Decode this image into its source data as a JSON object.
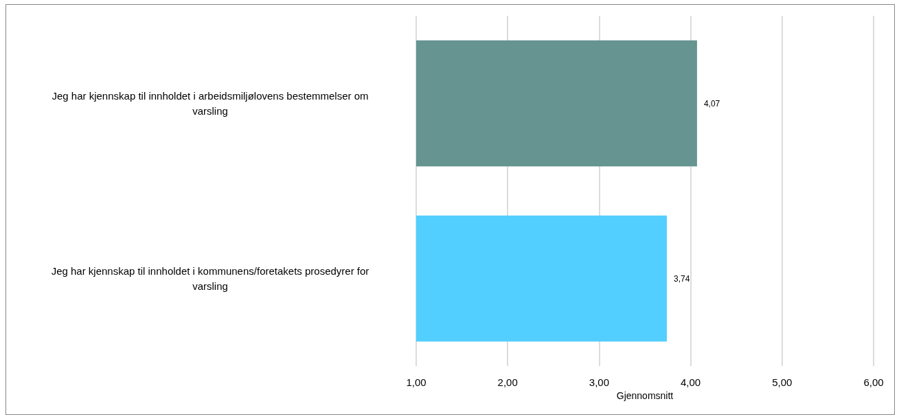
{
  "chart_data": {
    "type": "bar",
    "orientation": "horizontal",
    "xlabel": "Gjennomsnitt",
    "categories": [
      "Jeg har kjennskap til innholdet i arbeidsmiljølovens bestemmelser om varsling",
      "Jeg har kjennskap til innholdet i kommunens/foretakets prosedyrer for varsling"
    ],
    "values": [
      4.07,
      3.74
    ],
    "value_labels": [
      "4,07",
      "3,74"
    ],
    "colors": [
      "#669490",
      "#53cfff"
    ],
    "xlim": [
      1,
      6
    ],
    "xticks": [
      {
        "value": 1,
        "label": "1,00"
      },
      {
        "value": 2,
        "label": "2,00"
      },
      {
        "value": 3,
        "label": "3,00"
      },
      {
        "value": 4,
        "label": "4,00"
      },
      {
        "value": 5,
        "label": "5,00"
      },
      {
        "value": 6,
        "label": "6,00"
      }
    ],
    "grid": "x"
  }
}
